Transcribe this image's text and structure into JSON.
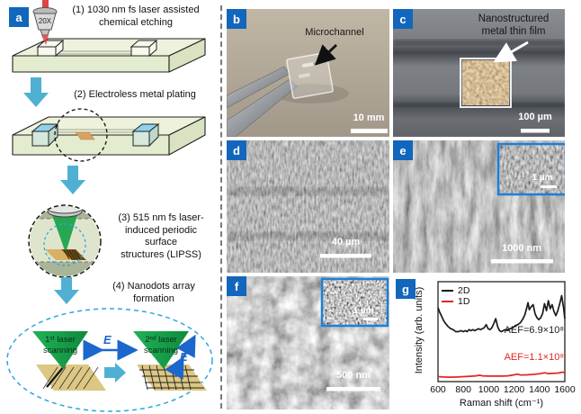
{
  "panel_a": {
    "label": "a",
    "objective_label": "20X",
    "step1_line1": "(1) 1030 nm fs laser assisted",
    "step1_line2": "chemical etching",
    "step2": "(2) Electroless metal plating",
    "step3_line1": "(3) 515 nm fs laser-",
    "step3_line2": "induced periodic",
    "step3_line3": "surface",
    "step3_line4": "structures (LIPSS)",
    "step4_line1": "(4) Nanodots array",
    "step4_line2": "formation",
    "cone1_line1": "1ˢᵗ laser",
    "cone1_line2": "scanning",
    "cone2_line1": "2ⁿᵈ laser",
    "cone2_line2": "scanning",
    "efield_label": "E"
  },
  "panel_b": {
    "label": "b",
    "annotation": "Microchannel",
    "scale_bar": "10 mm"
  },
  "panel_c": {
    "label": "c",
    "annotation_line1": "Nanostructured",
    "annotation_line2": "metal thin film",
    "scale_bar": "100 µm"
  },
  "panel_d": {
    "label": "d",
    "scale_bar": "40 µm"
  },
  "panel_e": {
    "label": "e",
    "scale_bar": "1000 nm",
    "inset_scale_bar": "1 µm"
  },
  "panel_f": {
    "label": "f",
    "scale_bar": "500 nm",
    "inset_scale_bar": "1 µm"
  },
  "panel_g": {
    "label": "g"
  },
  "chart_data": {
    "type": "line",
    "title": "",
    "xlabel": "Raman shift (cm⁻¹)",
    "ylabel": "Intensity (arb. units)",
    "xlim": [
      600,
      1600
    ],
    "xticks": [
      "600",
      "800",
      "1000",
      "1200",
      "1400",
      "1600"
    ],
    "grid": false,
    "legend_position": "upper left",
    "series": [
      {
        "name": "2D",
        "color": "#1a1a1a",
        "annotation": "AEF=6.9×10⁸",
        "x": [
          600,
          615,
          630,
          645,
          660,
          680,
          700,
          720,
          740,
          760,
          780,
          800,
          815,
          830,
          845,
          860,
          875,
          890,
          905,
          920,
          935,
          950,
          965,
          980,
          995,
          1010,
          1025,
          1040,
          1055,
          1070,
          1085,
          1100,
          1115,
          1130,
          1150,
          1170,
          1190,
          1210,
          1230,
          1250,
          1270,
          1285,
          1300,
          1310,
          1320,
          1335,
          1350,
          1365,
          1380,
          1395,
          1410,
          1425,
          1440,
          1455,
          1470,
          1485,
          1500,
          1515,
          1530,
          1545,
          1560,
          1575,
          1590,
          1600
        ],
        "y": [
          0.74,
          0.69,
          0.65,
          0.61,
          0.58,
          0.55,
          0.53,
          0.52,
          0.5,
          0.5,
          0.51,
          0.5,
          0.51,
          0.5,
          0.52,
          0.51,
          0.52,
          0.51,
          0.52,
          0.53,
          0.52,
          0.53,
          0.54,
          0.57,
          0.53,
          0.52,
          0.54,
          0.58,
          0.63,
          0.55,
          0.51,
          0.5,
          0.51,
          0.52,
          0.52,
          0.53,
          0.54,
          0.56,
          0.57,
          0.59,
          0.63,
          0.67,
          0.74,
          0.79,
          0.72,
          0.75,
          0.77,
          0.68,
          0.64,
          0.62,
          0.64,
          0.68,
          0.78,
          0.71,
          0.81,
          0.73,
          0.77,
          0.7,
          0.66,
          0.71,
          0.78,
          0.86,
          0.74,
          0.63
        ]
      },
      {
        "name": "1D",
        "color": "#e02520",
        "annotation": "AEF=1.1×10⁸",
        "x": [
          600,
          650,
          700,
          750,
          800,
          850,
          900,
          930,
          950,
          1000,
          1050,
          1100,
          1150,
          1200,
          1225,
          1250,
          1300,
          1350,
          1400,
          1440,
          1470,
          1500,
          1550,
          1580,
          1600
        ],
        "y": [
          0.05,
          0.046,
          0.044,
          0.046,
          0.05,
          0.053,
          0.058,
          0.064,
          0.058,
          0.055,
          0.056,
          0.055,
          0.058,
          0.068,
          0.075,
          0.066,
          0.068,
          0.072,
          0.078,
          0.088,
          0.08,
          0.082,
          0.086,
          0.095,
          0.09
        ]
      }
    ]
  },
  "colors": {
    "panel_label_bg": "#1266bb",
    "inset_border": "#1d7fd6",
    "process_arrow_blue": "#4fb0d4",
    "laser_green": "#17a34a",
    "efield_blue": "#1b67cd",
    "laser_red": "#e04343"
  }
}
